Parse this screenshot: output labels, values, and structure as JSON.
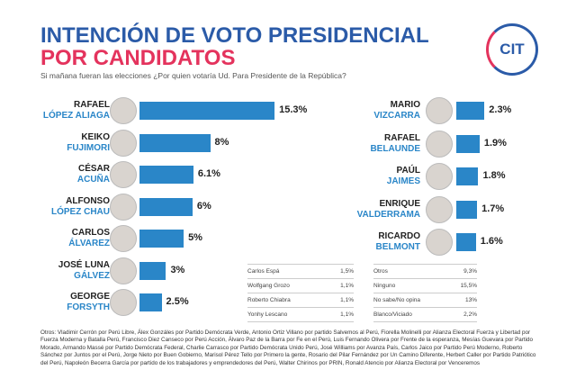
{
  "header": {
    "title": [
      "INTENCIÓN DE VOTO PRESIDENCIAL",
      "POR CANDIDATOS"
    ],
    "subtitle": "Si mañana fueran las elecciones ¿Por quien votaría Ud. Para Presidente de la República?",
    "logo": "CIT"
  },
  "chart_data": [
    {
      "type": "bar",
      "orientation": "horizontal",
      "color": "#2a86c8",
      "categories": [
        [
          "RAFAEL",
          "LÓPEZ ALIAGA"
        ],
        [
          "KEIKO",
          "FUJIMORI"
        ],
        [
          "CÉSAR",
          "ACUÑA"
        ],
        [
          "ALFONSO",
          "LÓPEZ CHAU"
        ],
        [
          "CARLOS",
          "ÁLVAREZ"
        ],
        [
          "JOSÉ LUNA",
          "GÁLVEZ"
        ],
        [
          "GEORGE",
          "FORSYTH"
        ]
      ],
      "values": [
        15.3,
        8,
        6.1,
        6,
        5,
        3,
        2.5
      ],
      "value_labels": [
        "15.3%",
        "8%",
        "6.1%",
        "6%",
        "5%",
        "3%",
        "2.5%"
      ],
      "xlim": [
        0,
        16
      ]
    },
    {
      "type": "bar",
      "orientation": "horizontal",
      "color": "#2a86c8",
      "categories": [
        [
          "MARIO",
          "VIZCARRA"
        ],
        [
          "RAFAEL",
          "BELAUNDE"
        ],
        [
          "PAÚL",
          "JAIMES"
        ],
        [
          "ENRIQUE",
          "VALDERRAMA"
        ],
        [
          "RICARDO",
          "BELMONT"
        ]
      ],
      "values": [
        2.3,
        1.9,
        1.8,
        1.7,
        1.6
      ],
      "value_labels": [
        "2.3%",
        "1.9%",
        "1.8%",
        "1.7%",
        "1.6%"
      ],
      "xlim": [
        0,
        5
      ]
    }
  ],
  "tables": [
    [
      [
        "Carlos Espá",
        "1,5%"
      ],
      [
        "Wolfgang Grozo",
        "1,1%"
      ],
      [
        "Roberto Chiabra",
        "1,1%"
      ],
      [
        "Yonhy Lescano",
        "1,1%"
      ]
    ],
    [
      [
        "Otros",
        "9,3%"
      ],
      [
        "Ninguno",
        "15,5%"
      ],
      [
        "No sabe/No opina",
        "13%"
      ],
      [
        "Blanco/Viciado",
        "2,2%"
      ]
    ]
  ],
  "footnote": "Otros: Vladimir Cerrón por Perú Libre, Álex Gonzáles por Partido Demócrata Verde, Antonio Ortiz Villano por partido Salvemos al Perú, Fiorella Molinelli por Alianza Electoral Fuerza y Libertad por Fuerza Moderna y Batalla Perú, Francisco Diez Canseco por Perú Acción, Álvaro Paz de la Barra por Fe en el Perú, Luis Fernando Olivera por Frente de la esperanza, Mesías Guevara por Partido Morado, Armando Massé por Partido Demócrata Federal, Charlie Carrasco por Partido Demócrata Unido Perú, José Williams por Avanza País, Carlos Jaico por Partido Perú Moderno, Roberto Sánchez por Juntos por el Perú, Jorge Nieto por Buen Gobierno, Marisol Pérez Tello por Primero la gente, Rosario del Pilar Fernández por Un Camino Diferente, Herbert Caller por Partido Patriótico del Perú, Napoleón Becerra García por partido de los trabajadores y emprendedores del Perú, Walter Chirinos por PRIN, Ronald Atencio por Alianza Electoral por Venceremos"
}
